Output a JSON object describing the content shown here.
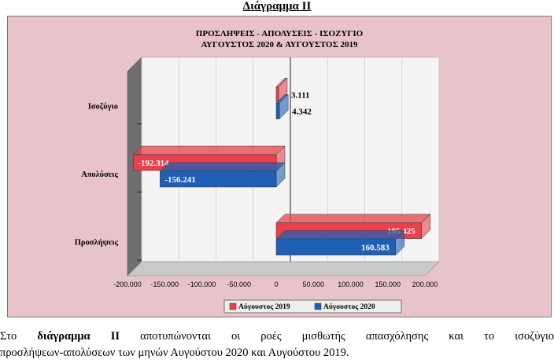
{
  "heading": "Διάγραμμα ΙΙ",
  "caption": {
    "prefix": "Στο ",
    "bold": "διάγραμμα ΙΙ",
    "line1_rest": " αποτυπώνονται οι ροές μισθωτής απασχόλησης και το ισοζύγιο",
    "line2": "προσλήψεων-απολύσεων των μηνών Αυγούστου 2020 και Αυγούστου 2019."
  },
  "colors": {
    "series_2019": "#e8414b",
    "series_2020": "#1f5fb4",
    "background": "#e8c4ca",
    "plot": "#f2f2f2"
  },
  "chart_data": {
    "type": "bar",
    "orientation": "horizontal",
    "title": [
      "ΠΡΟΣΛΗΨΕΙΣ - ΑΠΟΛΥΣΕΙΣ - ΙΣΟΖΥΓΙΟ",
      "ΑΥΓΟΥΣΤΟΣ 2020 & ΑΥΓΟΥΣΤΟΣ 2019"
    ],
    "categories": [
      "Ισοζύγιο",
      "Απολύσεις",
      "Προσλήψεις"
    ],
    "series": [
      {
        "name": "Αύγουστος 2019",
        "values": [
          3111,
          -192314,
          195425
        ],
        "labels": [
          "3.111",
          "-192.314",
          "195.425"
        ]
      },
      {
        "name": "Αύγουστος 2020",
        "values": [
          4342,
          -156241,
          160583
        ],
        "labels": [
          "4.342",
          "-156.241",
          "160.583"
        ]
      }
    ],
    "xlim": [
      -200000,
      200000
    ],
    "xticks": [
      -200000,
      -150000,
      -100000,
      -50000,
      0,
      50000,
      100000,
      150000,
      200000
    ],
    "xtick_labels": [
      "-200.000",
      "-150.000",
      "-100.000",
      "-50.000",
      "0",
      "50.000",
      "100.000",
      "150.000",
      "200.000"
    ],
    "grid": true,
    "legend": "bottom",
    "style": "3d"
  }
}
